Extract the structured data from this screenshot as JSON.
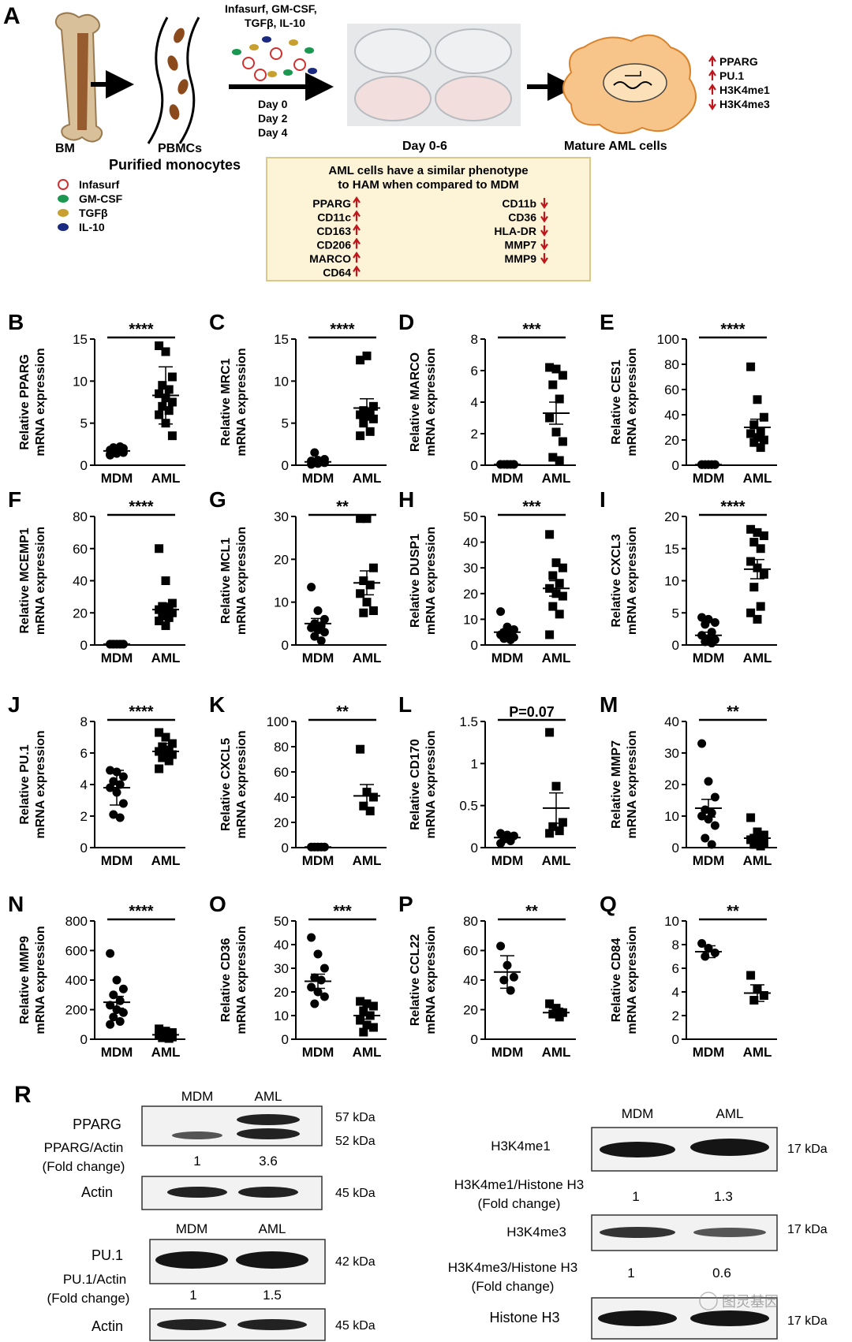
{
  "schema": {
    "panel_letter": "A",
    "labels": {
      "bm": "BM",
      "pbmcs": "PBMCs",
      "purified": "Purified monocytes",
      "day_range": "Day 0-6",
      "mature": "Mature AML cells"
    },
    "treatment": [
      "Infasurf, GM-CSF,",
      "TGFβ, IL-10"
    ],
    "days": [
      "Day 0",
      "Day 2",
      "Day 4"
    ],
    "legend": [
      {
        "name": "Infasurf",
        "color": "#d03030"
      },
      {
        "name": "GM-CSF",
        "color": "#1a9850"
      },
      {
        "name": "TGFβ",
        "color": "#c8a030"
      },
      {
        "name": "IL-10",
        "color": "#1a2a80"
      }
    ],
    "outcome_markers": [
      {
        "name": "PPARG",
        "dir": "up"
      },
      {
        "name": "PU.1",
        "dir": "up"
      },
      {
        "name": "H3K4me1",
        "dir": "up"
      },
      {
        "name": "H3K4me3",
        "dir": "down"
      }
    ],
    "box": {
      "title": [
        "AML cells have a similar phenotype",
        "to HAM when compared to MDM"
      ],
      "up": [
        "PPARG",
        "CD11c",
        "CD163",
        "CD206",
        "MARCO",
        "CD64"
      ],
      "down": [
        "CD11b",
        "CD36",
        "HLA-DR",
        "MMP7",
        "MMP9"
      ]
    }
  },
  "colors": {
    "arrow_up": "#c0161b",
    "arrow_down": "#c0161b",
    "box_fill": "#fdf4d8",
    "box_border": "#d9c88a",
    "cell_fill": "#f7c48a",
    "cell_border": "#d9822b",
    "bone": "#c8a878",
    "bone_marrow": "#8b4a1c"
  },
  "chart_data": [
    {
      "type": "scatter",
      "letter": "B",
      "gene": "PPARG",
      "ylabel": [
        "Relative PPARG",
        "mRNA expression"
      ],
      "categories": [
        "MDM",
        "AML"
      ],
      "ylim": [
        0,
        15
      ],
      "yticks": [
        0,
        5,
        10,
        15
      ],
      "sig": "****",
      "series": [
        {
          "name": "MDM",
          "marker": "circle",
          "values": [
            1.2,
            1.4,
            1.5,
            1.6,
            1.7,
            1.8,
            1.9,
            2.0,
            2.1,
            2.2,
            1.3,
            1.6
          ],
          "mean": 1.7,
          "sem": 0.2
        },
        {
          "name": "AML",
          "marker": "square",
          "values": [
            14.2,
            13.5,
            10.5,
            9.5,
            9.0,
            8.5,
            8.0,
            7.5,
            7.0,
            6.5,
            6.0,
            5.0,
            3.5
          ],
          "mean": 8.3,
          "sem": 3.4
        }
      ]
    },
    {
      "type": "scatter",
      "letter": "C",
      "gene": "MRC1",
      "ylabel": [
        "Relative MRC1",
        "mRNA expression"
      ],
      "categories": [
        "MDM",
        "AML"
      ],
      "ylim": [
        0,
        15
      ],
      "yticks": [
        0,
        5,
        10,
        15
      ],
      "sig": "****",
      "series": [
        {
          "name": "MDM",
          "marker": "circle",
          "values": [
            0.1,
            0.2,
            0.3,
            0.3,
            0.4,
            0.5,
            0.6,
            0.7,
            1.5
          ],
          "mean": 0.4,
          "sem": 0.15
        },
        {
          "name": "AML",
          "marker": "square",
          "values": [
            12.5,
            13.0,
            7.0,
            6.5,
            6.2,
            6.0,
            5.8,
            5.5,
            5.0,
            4.0,
            3.5
          ],
          "mean": 6.8,
          "sem": 1.1
        }
      ]
    },
    {
      "type": "scatter",
      "letter": "D",
      "gene": "MARCO",
      "ylabel": [
        "Relative MARCO",
        "mRNA expression"
      ],
      "categories": [
        "MDM",
        "AML"
      ],
      "ylim": [
        0,
        8
      ],
      "yticks": [
        0,
        2,
        4,
        6,
        8
      ],
      "sig": "***",
      "series": [
        {
          "name": "MDM",
          "marker": "circle",
          "values": [
            0.05,
            0.05,
            0.05,
            0.05,
            0.05,
            0.05,
            0.05,
            0.05
          ],
          "mean": 0.05,
          "sem": 0.02
        },
        {
          "name": "AML",
          "marker": "square",
          "values": [
            6.2,
            6.1,
            5.7,
            5.1,
            4.2,
            3.0,
            2.1,
            1.5,
            0.5,
            0.3
          ],
          "mean": 3.3,
          "sem": 0.7
        }
      ]
    },
    {
      "type": "scatter",
      "letter": "E",
      "gene": "CES1",
      "ylabel": [
        "Relative CES1",
        "mRNA expression"
      ],
      "categories": [
        "MDM",
        "AML"
      ],
      "ylim": [
        0,
        100
      ],
      "yticks": [
        0,
        20,
        40,
        60,
        80,
        100
      ],
      "sig": "****",
      "series": [
        {
          "name": "MDM",
          "marker": "circle",
          "values": [
            0.5,
            0.5,
            0.5,
            0.5,
            0.5,
            0.5,
            0.5,
            0.5,
            0.5,
            0.5
          ],
          "mean": 0.5,
          "sem": 0.1
        },
        {
          "name": "AML",
          "marker": "square",
          "values": [
            78,
            52,
            38,
            32,
            27,
            25,
            22,
            20,
            18,
            14
          ],
          "mean": 30,
          "sem": 6.5
        }
      ]
    },
    {
      "type": "scatter",
      "letter": "F",
      "gene": "MCEMP1",
      "ylabel": [
        "Relative MCEMP1",
        "mRNA expression"
      ],
      "categories": [
        "MDM",
        "AML"
      ],
      "ylim": [
        0,
        80
      ],
      "yticks": [
        0,
        20,
        40,
        60,
        80
      ],
      "sig": "****",
      "series": [
        {
          "name": "MDM",
          "marker": "circle",
          "values": [
            0.5,
            0.5,
            0.5,
            0.5,
            0.5,
            0.5,
            0.5,
            0.5,
            0.5,
            0.5
          ],
          "mean": 0.5,
          "sem": 0.1
        },
        {
          "name": "AML",
          "marker": "square",
          "values": [
            60,
            40,
            26,
            24,
            23,
            22,
            21,
            20,
            18,
            17,
            15,
            12
          ],
          "mean": 22,
          "sem": 4
        }
      ]
    },
    {
      "type": "scatter",
      "letter": "G",
      "gene": "MCL1",
      "ylabel": [
        "Relative MCL1",
        "mRNA expression"
      ],
      "categories": [
        "MDM",
        "AML"
      ],
      "ylim": [
        0,
        30
      ],
      "yticks": [
        0,
        10,
        20,
        30
      ],
      "sig": "**",
      "series": [
        {
          "name": "MDM",
          "marker": "circle",
          "values": [
            13.5,
            8,
            6,
            5,
            4.5,
            4,
            3.5,
            3,
            2,
            1
          ],
          "mean": 5,
          "sem": 1.2
        },
        {
          "name": "AML",
          "marker": "square",
          "values": [
            29.5,
            29.5,
            18,
            15,
            14,
            12,
            10,
            8,
            7.5
          ],
          "mean": 14.5,
          "sem": 2.8
        }
      ]
    },
    {
      "type": "scatter",
      "letter": "H",
      "gene": "DUSP1",
      "ylabel": [
        "Relative DUSP1",
        "mRNA expression"
      ],
      "categories": [
        "MDM",
        "AML"
      ],
      "ylim": [
        0,
        50
      ],
      "yticks": [
        0,
        10,
        20,
        30,
        40,
        50
      ],
      "sig": "***",
      "series": [
        {
          "name": "MDM",
          "marker": "circle",
          "values": [
            13,
            7,
            6,
            5,
            4.5,
            4,
            3.5,
            3,
            2.5,
            2
          ],
          "mean": 5,
          "sem": 1
        },
        {
          "name": "AML",
          "marker": "square",
          "values": [
            43,
            32,
            30,
            27,
            24,
            22,
            20,
            19,
            15,
            12,
            4
          ],
          "mean": 22,
          "sem": 3
        }
      ]
    },
    {
      "type": "scatter",
      "letter": "I",
      "gene": "CXCL3",
      "ylabel": [
        "Relative CXCL3",
        "mRNA expression"
      ],
      "categories": [
        "MDM",
        "AML"
      ],
      "ylim": [
        0,
        20
      ],
      "yticks": [
        0,
        5,
        10,
        15,
        20
      ],
      "sig": "****",
      "series": [
        {
          "name": "MDM",
          "marker": "circle",
          "values": [
            4.3,
            4,
            3.5,
            3.2,
            2,
            1.5,
            1,
            0.8,
            0.5,
            0.3
          ],
          "mean": 1.5,
          "sem": 0.5
        },
        {
          "name": "AML",
          "marker": "square",
          "values": [
            18,
            17.5,
            17,
            16,
            15,
            13,
            12,
            11,
            9,
            6,
            5,
            4
          ],
          "mean": 11.8,
          "sem": 1.5
        }
      ]
    },
    {
      "type": "scatter",
      "letter": "J",
      "gene": "PU.1",
      "ylabel": [
        "Relative PU.1",
        "mRNA expression"
      ],
      "categories": [
        "MDM",
        "AML"
      ],
      "ylim": [
        0,
        8
      ],
      "yticks": [
        0,
        2,
        4,
        6,
        8
      ],
      "sig": "****",
      "series": [
        {
          "name": "MDM",
          "marker": "circle",
          "values": [
            4.9,
            4.8,
            4.5,
            4.2,
            4.0,
            3.8,
            3.5,
            2.8,
            2.1,
            1.9
          ],
          "mean": 3.8,
          "sem": 1.1
        },
        {
          "name": "AML",
          "marker": "square",
          "values": [
            7.3,
            7.0,
            6.6,
            6.4,
            6.2,
            6.1,
            6.0,
            5.9,
            5.7,
            5.5,
            5.0
          ],
          "mean": 6.1,
          "sem": 0.5
        }
      ]
    },
    {
      "type": "scatter",
      "letter": "K",
      "gene": "CXCL5",
      "ylabel": [
        "Relative CXCL5",
        "mRNA expression"
      ],
      "categories": [
        "MDM",
        "AML"
      ],
      "ylim": [
        0,
        100
      ],
      "yticks": [
        0,
        20,
        40,
        60,
        80,
        100
      ],
      "sig": "**",
      "series": [
        {
          "name": "MDM",
          "marker": "circle",
          "values": [
            0.5,
            0.5,
            0.5,
            0.5,
            0.5
          ],
          "mean": 0.5,
          "sem": 0.1
        },
        {
          "name": "AML",
          "marker": "square",
          "values": [
            78,
            44,
            40,
            33,
            29
          ],
          "mean": 41,
          "sem": 9
        }
      ]
    },
    {
      "type": "scatter",
      "letter": "L",
      "gene": "CD170",
      "ylabel": [
        "Relative CD170",
        "mRNA expression"
      ],
      "categories": [
        "MDM",
        "AML"
      ],
      "ylim": [
        0,
        1.5
      ],
      "yticks": [
        0,
        0.5,
        1.0,
        1.5
      ],
      "sig": "P=0.07",
      "series": [
        {
          "name": "MDM",
          "marker": "circle",
          "values": [
            0.17,
            0.15,
            0.14,
            0.1,
            0.08,
            0.05
          ],
          "mean": 0.12,
          "sem": 0.03
        },
        {
          "name": "AML",
          "marker": "square",
          "values": [
            1.37,
            0.73,
            0.3,
            0.25,
            0.2,
            0.17
          ],
          "mean": 0.47,
          "sem": 0.18
        }
      ]
    },
    {
      "type": "scatter",
      "letter": "M",
      "gene": "MMP7",
      "ylabel": [
        "Relative MMP7",
        "mRNA expression"
      ],
      "categories": [
        "MDM",
        "AML"
      ],
      "ylim": [
        0,
        40
      ],
      "yticks": [
        0,
        10,
        20,
        30,
        40
      ],
      "sig": "**",
      "series": [
        {
          "name": "MDM",
          "marker": "circle",
          "values": [
            33,
            21,
            16,
            12,
            11,
            10,
            9,
            7,
            3,
            1
          ],
          "mean": 12.5,
          "sem": 2.8
        },
        {
          "name": "AML",
          "marker": "square",
          "values": [
            9.5,
            5,
            4,
            3,
            3,
            2.5,
            2,
            1.5,
            1,
            0.5
          ],
          "mean": 3,
          "sem": 0.9
        }
      ]
    },
    {
      "type": "scatter",
      "letter": "N",
      "gene": "MMP9",
      "ylabel": [
        "Relative MMP9",
        "mRNA expression"
      ],
      "categories": [
        "MDM",
        "AML"
      ],
      "ylim": [
        0,
        800
      ],
      "yticks": [
        0,
        200,
        400,
        600,
        800
      ],
      "sig": "****",
      "series": [
        {
          "name": "MDM",
          "marker": "circle",
          "values": [
            580,
            400,
            340,
            300,
            260,
            230,
            200,
            180,
            150,
            120,
            100
          ],
          "mean": 250,
          "sem": 40
        },
        {
          "name": "AML",
          "marker": "square",
          "values": [
            70,
            55,
            45,
            40,
            30,
            25,
            20,
            15,
            10,
            5
          ],
          "mean": 30,
          "sem": 6
        }
      ]
    },
    {
      "type": "scatter",
      "letter": "O",
      "gene": "CD36",
      "ylabel": [
        "Relative CD36",
        "mRNA expression"
      ],
      "categories": [
        "MDM",
        "AML"
      ],
      "ylim": [
        0,
        50
      ],
      "yticks": [
        0,
        10,
        20,
        30,
        40,
        50
      ],
      "sig": "***",
      "series": [
        {
          "name": "MDM",
          "marker": "circle",
          "values": [
            43,
            36,
            30,
            26,
            25,
            22,
            20,
            18,
            15
          ],
          "mean": 24.5,
          "sem": 3
        },
        {
          "name": "AML",
          "marker": "square",
          "values": [
            16,
            15,
            14,
            12,
            10,
            8,
            6,
            5,
            3
          ],
          "mean": 10,
          "sem": 1.5
        }
      ]
    },
    {
      "type": "scatter",
      "letter": "P",
      "gene": "CCL22",
      "ylabel": [
        "Relative CCL22",
        "mRNA expression"
      ],
      "categories": [
        "MDM",
        "AML"
      ],
      "ylim": [
        0,
        80
      ],
      "yticks": [
        0,
        20,
        40,
        60,
        80
      ],
      "sig": "**",
      "series": [
        {
          "name": "MDM",
          "marker": "circle",
          "values": [
            63,
            50,
            42,
            40,
            33
          ],
          "mean": 45.5,
          "sem": 11
        },
        {
          "name": "AML",
          "marker": "square",
          "values": [
            24,
            21,
            18,
            17,
            15
          ],
          "mean": 18,
          "sem": 3
        }
      ]
    },
    {
      "type": "scatter",
      "letter": "Q",
      "gene": "CD84",
      "ylabel": [
        "Relative CD84",
        "mRNA expression"
      ],
      "categories": [
        "MDM",
        "AML"
      ],
      "ylim": [
        0,
        10
      ],
      "yticks": [
        0,
        2,
        4,
        6,
        8,
        10
      ],
      "sig": "**",
      "series": [
        {
          "name": "MDM",
          "marker": "circle",
          "values": [
            8.1,
            7.7,
            7.3,
            7.0
          ],
          "mean": 7.4,
          "sem": 0.5
        },
        {
          "name": "AML",
          "marker": "square",
          "values": [
            5.4,
            4.2,
            3.7,
            3.3
          ],
          "mean": 3.9,
          "sem": 0.7
        }
      ]
    }
  ],
  "western": {
    "letter": "R",
    "left": {
      "ppar_header": [
        "MDM",
        "AML"
      ],
      "pparg_label": "PPARG",
      "pparg_kda": [
        "57 kDa",
        "52 kDa"
      ],
      "pparg_ratio_label": [
        "PPARG/Actin",
        "(Fold change)"
      ],
      "pparg_ratio": [
        "1",
        "3.6"
      ],
      "actin_label": "Actin",
      "actin_kda": "45 kDa",
      "pu_header": [
        "MDM",
        "AML"
      ],
      "pu_label": "PU.1",
      "pu_kda": "42 kDa",
      "pu_ratio_label": [
        "PU.1/Actin",
        "(Fold change)"
      ],
      "pu_ratio": [
        "1",
        "1.5"
      ],
      "actin2_label": "Actin",
      "actin2_kda": "45 kDa"
    },
    "right": {
      "header": [
        "MDM",
        "AML"
      ],
      "me1_label": "H3K4me1",
      "me1_kda": "17 kDa",
      "me1_ratio_label": [
        "H3K4me1/Histone  H3",
        "(Fold change)"
      ],
      "me1_ratio": [
        "1",
        "1.3"
      ],
      "me3_label": "H3K4me3",
      "me3_kda": "17 kDa",
      "me3_ratio_label": [
        "H3K4me3/Histone  H3",
        "(Fold change)"
      ],
      "me3_ratio": [
        "1",
        "0.6"
      ],
      "h3_label": "Histone H3",
      "h3_kda": "17 kDa"
    },
    "watermark": "图灵基因"
  }
}
